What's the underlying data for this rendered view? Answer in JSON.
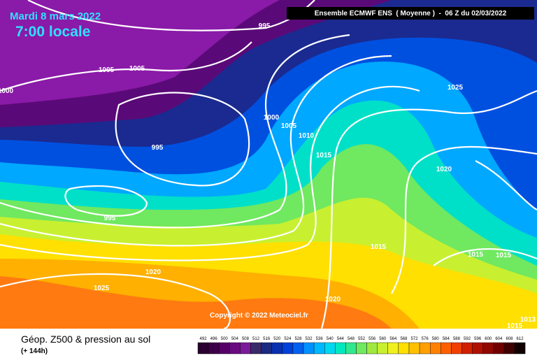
{
  "header": {
    "date": "Mardi 8 mars 2022",
    "time": "7:00 locale",
    "model": "Ensemble ECMWF ENS  ( Moyenne )  -  06 Z du 02/03/2022"
  },
  "copyright": "Copyright © 2022 Meteociel.fr",
  "caption": {
    "title": "Géop. Z500 & pression au sol",
    "lead": "(+ 144h)"
  },
  "isobar_labels": [
    "995",
    "1005",
    "1005",
    "1000",
    "995",
    "995",
    "1000",
    "1005",
    "1010",
    "1015",
    "1025",
    "1020",
    "1015",
    "1015",
    "1015",
    "1020",
    "1025",
    "1020",
    "1015",
    "1013"
  ],
  "colorbar": {
    "ticks": [
      492,
      496,
      500,
      504,
      508,
      512,
      516,
      520,
      524,
      528,
      532,
      536,
      540,
      544,
      548,
      552,
      556,
      560,
      564,
      568,
      572,
      576,
      580,
      584,
      588,
      592,
      596,
      600,
      604,
      608,
      612
    ],
    "colors": [
      "#2a0030",
      "#3d0048",
      "#550066",
      "#6a0a80",
      "#7a1a99",
      "#3a2a6a",
      "#1a2a80",
      "#0a30b0",
      "#0040d8",
      "#0060f0",
      "#0090ff",
      "#00b8ff",
      "#00d8f0",
      "#00e8c0",
      "#30e890",
      "#70e860",
      "#a0e840",
      "#c8f030",
      "#f0f020",
      "#ffe000",
      "#ffc000",
      "#ffa000",
      "#ff8000",
      "#ff6000",
      "#f04000",
      "#d02000",
      "#b01000",
      "#900800",
      "#700000",
      "#400000",
      "#100000"
    ]
  }
}
